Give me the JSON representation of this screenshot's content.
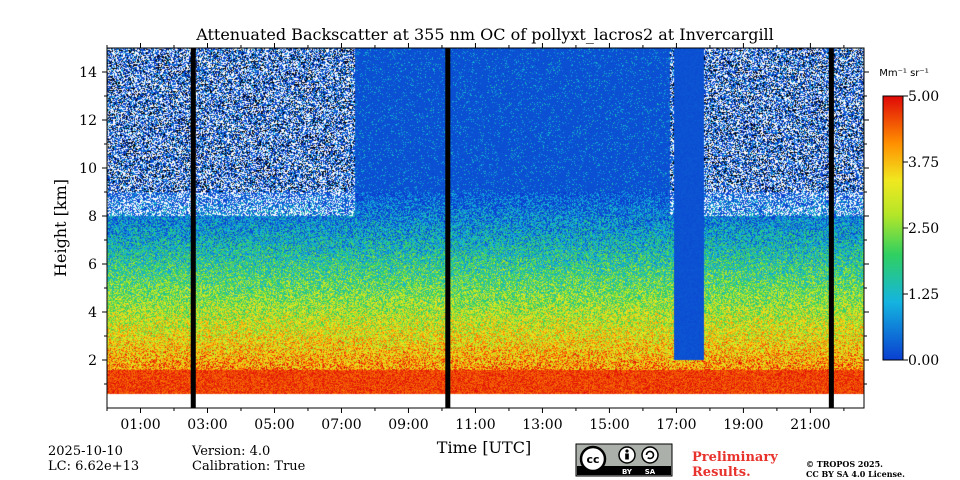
{
  "chart_data": {
    "type": "heatmap",
    "title": "Attenuated Backscatter at 355 nm OC of pollyxt_lacros2 at Invercargill",
    "xlabel": "Time [UTC]",
    "ylabel": "Height [km]",
    "xlim_hours": [
      0.0,
      22.6
    ],
    "ylim_km": [
      0.0,
      15.0
    ],
    "x_ticks": [
      "01:00",
      "03:00",
      "05:00",
      "07:00",
      "09:00",
      "11:00",
      "13:00",
      "15:00",
      "17:00",
      "19:00",
      "21:00"
    ],
    "x_tick_hours": [
      1,
      3,
      5,
      7,
      9,
      11,
      13,
      15,
      17,
      19,
      21
    ],
    "y_ticks": [
      "2",
      "4",
      "6",
      "8",
      "10",
      "12",
      "14"
    ],
    "y_tick_values": [
      2,
      4,
      6,
      8,
      10,
      12,
      14
    ],
    "colorbar": {
      "unit": "Mm⁻¹ sr⁻¹",
      "min": 0.0,
      "max": 5.0,
      "ticks": [
        "0.00",
        "1.25",
        "2.50",
        "3.75",
        "5.00"
      ],
      "tick_values": [
        0.0,
        1.25,
        2.5,
        3.75,
        5.0
      ]
    },
    "missing_data_gaps_hours": [
      [
        2.5,
        2.65
      ],
      [
        10.1,
        10.25
      ],
      [
        21.55,
        21.7
      ]
    ],
    "depolarization_free_region_hours": [
      [
        7.4,
        16.8
      ]
    ],
    "colors": {
      "low": "#0a4fd6",
      "mid": "#22c832",
      "high": "#e41a0c",
      "gap": "#000000"
    }
  },
  "footer": {
    "date": "2025-10-10",
    "lc": "LC: 6.62e+13",
    "version": "Version: 4.0",
    "calibration": "Calibration: True",
    "preliminary": "Preliminary\nResults.",
    "preliminary_line1": "Preliminary",
    "preliminary_line2": "Results.",
    "copyright_line1": "© TROPOS 2025.",
    "copyright_line2": "CC BY SA 4.0 License.",
    "cc_badge": {
      "by": "BY",
      "sa": "SA",
      "cc": "cc"
    }
  }
}
